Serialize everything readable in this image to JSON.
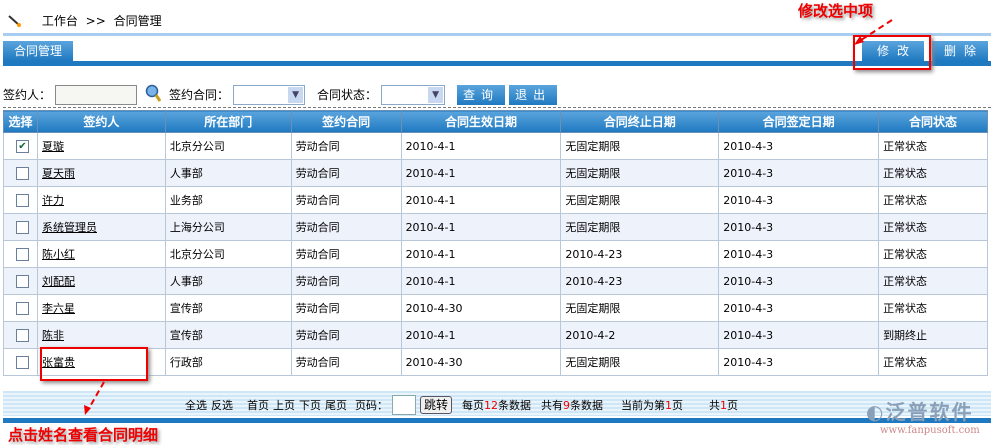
{
  "breadcrumb": {
    "home": "工作台",
    "sep": ">>",
    "current": "合同管理"
  },
  "tab": "合同管理",
  "toolbar": {
    "edit": "修改",
    "delete": "删除"
  },
  "filters": {
    "signer_label": "签约人：",
    "signer_value": "",
    "contract_label": "签约合同：",
    "contract_value": "",
    "status_label": "合同状态：",
    "status_value": "",
    "query": "查询",
    "exit": "退出"
  },
  "columns": [
    "选择",
    "签约人",
    "所在部门",
    "签约合同",
    "合同生效日期",
    "合同终止日期",
    "合同签定日期",
    "合同状态"
  ],
  "rows": [
    {
      "checked": true,
      "name": "夏璇",
      "dept": "北京分公司",
      "contract": "劳动合同",
      "start": "2010-4-1",
      "end": "无固定期限",
      "signed": "2010-4-3",
      "status": "正常状态"
    },
    {
      "checked": false,
      "name": "夏天雨",
      "dept": "人事部",
      "contract": "劳动合同",
      "start": "2010-4-1",
      "end": "无固定期限",
      "signed": "2010-4-3",
      "status": "正常状态"
    },
    {
      "checked": false,
      "name": "许力",
      "dept": "业务部",
      "contract": "劳动合同",
      "start": "2010-4-1",
      "end": "无固定期限",
      "signed": "2010-4-3",
      "status": "正常状态"
    },
    {
      "checked": false,
      "name": "系统管理员",
      "dept": "上海分公司",
      "contract": "劳动合同",
      "start": "2010-4-1",
      "end": "无固定期限",
      "signed": "2010-4-3",
      "status": "正常状态"
    },
    {
      "checked": false,
      "name": "陈小红",
      "dept": "北京分公司",
      "contract": "劳动合同",
      "start": "2010-4-1",
      "end": "2010-4-23",
      "signed": "2010-4-3",
      "status": "正常状态"
    },
    {
      "checked": false,
      "name": "刘配配",
      "dept": "人事部",
      "contract": "劳动合同",
      "start": "2010-4-1",
      "end": "2010-4-23",
      "signed": "2010-4-3",
      "status": "正常状态"
    },
    {
      "checked": false,
      "name": "李六星",
      "dept": "宣传部",
      "contract": "劳动合同",
      "start": "2010-4-30",
      "end": "无固定期限",
      "signed": "2010-4-3",
      "status": "正常状态"
    },
    {
      "checked": false,
      "name": "陈非",
      "dept": "宣传部",
      "contract": "劳动合同",
      "start": "2010-4-1",
      "end": "2010-4-2",
      "signed": "2010-4-3",
      "status": "到期终止"
    },
    {
      "checked": false,
      "name": "张富贵",
      "dept": "行政部",
      "contract": "劳动合同",
      "start": "2010-4-30",
      "end": "无固定期限",
      "signed": "2010-4-3",
      "status": "正常状态"
    }
  ],
  "pager": {
    "select_all": "全选",
    "invert": "反选",
    "first": "首页",
    "prev": "上页",
    "next": "下页",
    "last": "尾页",
    "page_label": "页码：",
    "go": "跳转",
    "per_page_pre": "每页",
    "per_page": "12",
    "per_page_post": "条数据",
    "total_pre": "共有",
    "total": "9",
    "total_post": "条数据",
    "current_pre": "当前为第",
    "current": "1",
    "current_post": "页",
    "pages_pre": "共",
    "pages": "1",
    "pages_post": "页"
  },
  "annotations": {
    "edit_note": "修改选中项",
    "name_note": "点击姓名查看合同明细"
  },
  "logo": {
    "text": "泛普软件",
    "url": "www.fanpusoft.com"
  },
  "colors": {
    "primary": "#1f79c0",
    "annotation": "#e00000"
  }
}
